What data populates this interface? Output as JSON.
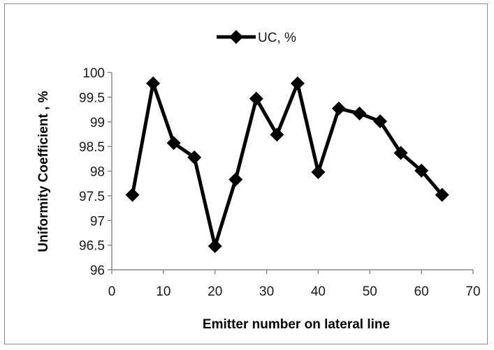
{
  "chart_data": {
    "type": "line",
    "title": "",
    "xlabel": "Emitter number on lateral line",
    "ylabel": "Uniformity Coefficient , %",
    "xlim": [
      0,
      70
    ],
    "ylim": [
      96,
      100
    ],
    "xticks": [
      "0",
      "10",
      "20",
      "30",
      "40",
      "50",
      "60",
      "70"
    ],
    "yticks": [
      "96",
      "96.5",
      "97",
      "97.5",
      "98",
      "98.5",
      "99",
      "99.5",
      "100"
    ],
    "grid": false,
    "legend_position": "top-center",
    "series": [
      {
        "name": "UC, %",
        "color": "#000000",
        "marker": "diamond",
        "x": [
          4,
          8,
          12,
          16,
          20,
          24,
          28,
          32,
          36,
          40,
          44,
          48,
          52,
          56,
          60,
          64
        ],
        "y": [
          97.52,
          99.78,
          98.57,
          98.28,
          96.48,
          97.83,
          99.47,
          98.74,
          99.78,
          97.98,
          99.27,
          99.17,
          99.01,
          98.37,
          98.01,
          97.52
        ]
      }
    ]
  }
}
